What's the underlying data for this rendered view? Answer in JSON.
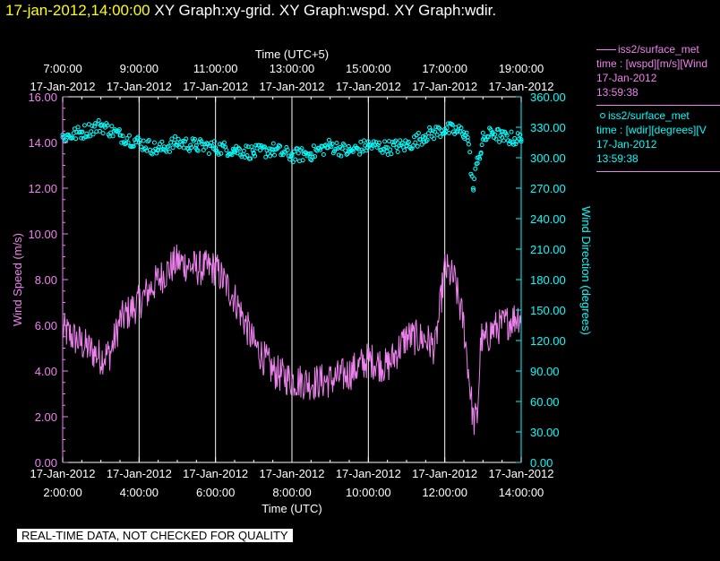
{
  "header": {
    "timestamp": "17-jan-2012,14:00:00",
    "graphs": "XY Graph:xy-grid.  XY Graph:wspd.  XY Graph:wdir."
  },
  "colors": {
    "background": "#000000",
    "timestamp": "#ffff00",
    "wind_speed": "#ee82ee",
    "wind_direction": "#00ffff",
    "axis_text": "#ffffff",
    "grid": "#ffffff"
  },
  "legend": {
    "wspd": {
      "source": "iss2/surface_met",
      "desc": "time : [wspd][m/s][Wind",
      "date": "17-Jan-2012",
      "time": "13:59:38"
    },
    "wdir": {
      "source": "iss2/surface_met",
      "desc": "time : [wdir][degrees][V",
      "date": "17-Jan-2012",
      "time": "13:59:38"
    }
  },
  "notice": "REAL-TIME DATA, NOT CHECKED FOR QUALITY",
  "chart_data": {
    "type": "line",
    "top_axis_title": "Time (UTC+5)",
    "bottom_axis_title": "Time (UTC)",
    "ylabel_left": "Wind Speed (m/s)",
    "ylabel_right": "Wind Direction (degrees)",
    "x_date": "17-Jan-2012",
    "x_top_ticks": [
      "7:00:00",
      "9:00:00",
      "11:00:00",
      "13:00:00",
      "15:00:00",
      "17:00:00",
      "19:00:00"
    ],
    "x_bottom_ticks": [
      "2:00:00",
      "4:00:00",
      "6:00:00",
      "8:00:00",
      "10:00:00",
      "12:00:00",
      "14:00:00"
    ],
    "x_range_utc": [
      "2012-01-17 02:00",
      "2012-01-17 14:00"
    ],
    "ylim_left": [
      0,
      16
    ],
    "y_left_ticks": [
      "0.00",
      "2.00",
      "4.00",
      "6.00",
      "8.00",
      "10.00",
      "12.00",
      "14.00",
      "16.00"
    ],
    "ylim_right": [
      0,
      360
    ],
    "y_right_ticks": [
      "0.00",
      "30.00",
      "60.00",
      "90.00",
      "120.00",
      "150.00",
      "180.00",
      "210.00",
      "240.00",
      "270.00",
      "300.00",
      "330.00",
      "360.00"
    ],
    "grid": "vertical lines at major time ticks",
    "series": [
      {
        "name": "iss2/surface_met wspd",
        "axis": "left",
        "style": "line",
        "x_hours_utc": [
          2.0,
          2.5,
          3.0,
          3.25,
          3.5,
          4.0,
          4.5,
          5.0,
          5.5,
          6.0,
          6.5,
          7.0,
          7.5,
          8.0,
          8.5,
          9.0,
          9.5,
          10.0,
          10.5,
          11.0,
          11.5,
          11.75,
          12.0,
          12.25,
          12.5,
          12.75,
          12.85,
          12.95,
          13.0,
          13.25,
          13.5,
          14.0
        ],
        "values": [
          5.8,
          5.2,
          4.6,
          4.8,
          6.2,
          7.0,
          8.0,
          8.8,
          8.5,
          8.5,
          7.2,
          5.2,
          4.0,
          3.6,
          3.5,
          3.6,
          3.9,
          4.5,
          4.2,
          5.5,
          5.4,
          5.0,
          8.5,
          8.0,
          6.0,
          1.8,
          2.0,
          5.5,
          5.2,
          5.8,
          6.0,
          6.5
        ]
      },
      {
        "name": "iss2/surface_met wdir",
        "axis": "right",
        "style": "markers",
        "x_hours_utc": [
          2.0,
          2.5,
          3.0,
          3.5,
          4.0,
          4.5,
          5.0,
          5.5,
          6.0,
          6.5,
          7.0,
          7.5,
          8.0,
          8.5,
          9.0,
          9.5,
          10.0,
          10.5,
          11.0,
          11.5,
          12.0,
          12.5,
          12.6,
          12.75,
          12.85,
          12.95,
          13.0,
          13.25,
          13.5,
          14.0
        ],
        "values": [
          320,
          325,
          332,
          322,
          315,
          308,
          315,
          312,
          310,
          308,
          305,
          308,
          302,
          304,
          312,
          306,
          312,
          310,
          312,
          322,
          328,
          325,
          320,
          268,
          300,
          305,
          318,
          325,
          320,
          318
        ]
      }
    ]
  }
}
